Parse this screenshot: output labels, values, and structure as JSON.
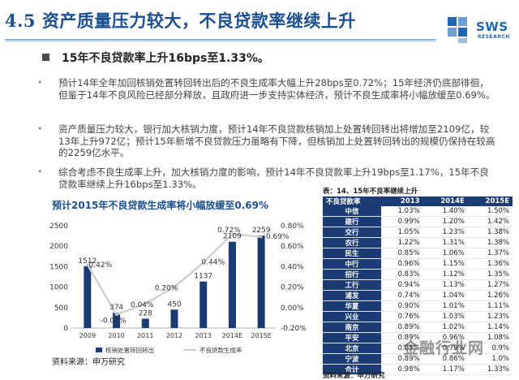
{
  "header": {
    "title": "4.5 资产质量压力较大，不良贷款率继续上升",
    "logo_text": "SWS",
    "logo_sub": "RESEARCH"
  },
  "content": {
    "main_bullet": "15年不良贷款率上升16bps至1.33%。",
    "paragraphs": [
      "预计14年全年加回核销处置转回转出后的不良生成率大幅上升28bps至0.72%；15年经济仍底部徘徊，但鉴于14年不良风险已经部分释放，且政府进一步支持实体经济，预计不良生成率将小幅放缓至0.69%。",
      "资产质量压力较大，银行加大核销力度，预计14年不良贷款核销加上处置转回转出将增加至2109亿，较13年上升972亿；预计15年新增不良贷款压力虽略有下降，但核销加上处置转回转出的规模仍保持在较高的2259亿水平。",
      "综合考虑不良生成率上升，加大核销力度的影响，预计14年不良贷款率上升19bps至1.17%，15年不良贷款率继续上升16bps至1.33%。"
    ]
  },
  "chart": {
    "title": "预计2015年不良贷款生成率将小幅放缓至0.69%",
    "source": "资料来源：申万研究"
  },
  "chart_data": {
    "type": "bar",
    "categories": [
      "2009",
      "2010",
      "2011",
      "2012",
      "2013",
      "2014E",
      "2015E"
    ],
    "series": [
      {
        "name": "核销处置转回转出",
        "type": "bar",
        "axis": "left",
        "values": [
          1512,
          374,
          228,
          450,
          1137,
          2109,
          2259
        ],
        "labels": [
          "1512",
          "374",
          "228",
          "450",
          "1137",
          "2109",
          "2259"
        ]
      },
      {
        "name": "不良贷款生成率",
        "type": "line",
        "axis": "right",
        "values": [
          0.42,
          -0.07,
          0.04,
          0.2,
          0.44,
          0.72,
          0.69
        ],
        "labels": [
          "0.42%",
          "-0.07%",
          "0.04%",
          "0.20%",
          "0.44%",
          "0.72%",
          "0.69%"
        ]
      }
    ],
    "ylim_left": [
      0,
      2500
    ],
    "yticks_left": [
      "0",
      "500",
      "1000",
      "1500",
      "2000",
      "2500"
    ],
    "ylim_right": [
      -0.2,
      0.8
    ],
    "yticks_right": [
      "-0.20%",
      "0.00%",
      "0.20%",
      "0.40%",
      "0.60%",
      "0.80%"
    ],
    "legend": "bottom"
  },
  "table": {
    "caption": "表：14、15年不良率继续上升",
    "headers": [
      "不良贷款率",
      "2013",
      "2014E",
      "2015E"
    ],
    "rows": [
      {
        "bank": "中信",
        "v": [
          "1.03%",
          "1.40%",
          "1.50%"
        ]
      },
      {
        "bank": "建行",
        "v": [
          "0.99%",
          "1.20%",
          "1.42%"
        ]
      },
      {
        "bank": "交行",
        "v": [
          "1.05%",
          "1.23%",
          "1.38%"
        ]
      },
      {
        "bank": "农行",
        "v": [
          "1.22%",
          "1.31%",
          "1.38%"
        ]
      },
      {
        "bank": "民生",
        "v": [
          "0.85%",
          "1.06%",
          "1.37%"
        ]
      },
      {
        "bank": "中行",
        "v": [
          "0.96%",
          "1.15%",
          "1.36%"
        ]
      },
      {
        "bank": "招行",
        "v": [
          "0.83%",
          "1.12%",
          "1.35%"
        ]
      },
      {
        "bank": "工行",
        "v": [
          "0.94%",
          "1.13%",
          "1.27%"
        ]
      },
      {
        "bank": "浦发",
        "v": [
          "0.74%",
          "1.04%",
          "1.26%"
        ]
      },
      {
        "bank": "华夏",
        "v": [
          "0.90%",
          "1.01%",
          "1.11%"
        ]
      },
      {
        "bank": "兴业",
        "v": [
          "0.76%",
          "1.03%",
          "1.23%"
        ]
      },
      {
        "bank": "南京",
        "v": [
          "0.89%",
          "1.02%",
          "1.14%"
        ]
      },
      {
        "bank": "平安",
        "v": [
          "0.89%",
          "0.96%",
          "1.08%"
        ]
      },
      {
        "bank": "北京",
        "v": [
          "0.65%",
          "0.79%",
          "0.9%"
        ]
      },
      {
        "bank": "宁波",
        "v": [
          "0.89%",
          "0.86%",
          "1.0%"
        ]
      },
      {
        "bank": "合计",
        "v": [
          "0.98%",
          "1.17%",
          "1.33%"
        ]
      }
    ],
    "source": "资料来源：申万研究"
  },
  "watermark": "金融行业网"
}
